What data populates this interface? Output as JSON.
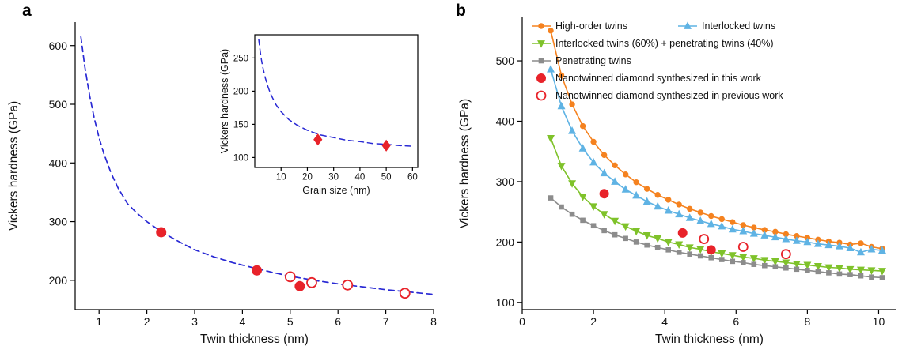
{
  "figure": {
    "background": "#ffffff"
  },
  "chart_data": [
    {
      "id": "panel-a",
      "panel_label": "a",
      "type": "line",
      "xlabel": "Twin thickness (nm)",
      "ylabel": "Vickers hardness (GPa)",
      "xlim": [
        0.5,
        8
      ],
      "ylim": [
        150,
        640
      ],
      "xticks": [
        1,
        2,
        3,
        4,
        5,
        6,
        7,
        8
      ],
      "yticks": [
        200,
        300,
        400,
        500,
        600
      ],
      "grid": false,
      "series": [
        {
          "name": "hardness-twin-thickness fit curve",
          "color": "#2929d4",
          "line": true,
          "dash": true,
          "width": 1.7,
          "marker": "none",
          "x": [
            0.62,
            0.7,
            0.8,
            0.9,
            1.0,
            1.1,
            1.25,
            1.4,
            1.6,
            1.8,
            2.0,
            2.3,
            2.6,
            3.0,
            3.4,
            3.8,
            4.2,
            4.6,
            5.0,
            5.5,
            6.0,
            6.5,
            7.0,
            7.5,
            8.0
          ],
          "y": [
            615,
            565,
            516,
            476,
            443,
            416,
            383,
            357,
            330,
            314,
            300,
            283,
            269,
            252,
            240,
            230,
            222,
            214,
            207,
            200,
            194,
            189,
            184,
            180,
            176
          ]
        },
        {
          "name": "Nanotwinned diamond synthesized in this work",
          "color": "#e8232a",
          "line": false,
          "marker": "circle",
          "filled": true,
          "msize": 6,
          "x": [
            2.3,
            4.3,
            5.2
          ],
          "y": [
            282,
            217,
            190
          ]
        },
        {
          "name": "Nanotwinned diamond synthesized in previous work",
          "color": "#e8232a",
          "line": false,
          "marker": "circle",
          "filled": false,
          "msize": 6,
          "x": [
            5.0,
            5.45,
            6.2,
            7.4
          ],
          "y": [
            206,
            196,
            192,
            178
          ]
        }
      ],
      "inset": {
        "id": "panel-a-inset",
        "xlabel": "Grain size (nm)",
        "ylabel": "Vickers hardness (GPa)",
        "xlim": [
          0,
          62
        ],
        "ylim": [
          85,
          285
        ],
        "xticks": [
          10,
          20,
          30,
          40,
          50,
          60
        ],
        "yticks": [
          100,
          150,
          200,
          250
        ],
        "grid": false,
        "series": [
          {
            "name": "hardness-grain size fit curve",
            "color": "#2929d4",
            "line": true,
            "dash": true,
            "width": 1.5,
            "marker": "none",
            "x": [
              1.5,
              2,
              2.5,
              3,
              4,
              5,
              6,
              8,
              10,
              13,
              16,
              20,
              25,
              30,
              35,
              40,
              45,
              50,
              55,
              60
            ],
            "y": [
              278,
              262,
              248,
              237,
              220,
              207,
              196,
              180,
              169,
              157,
              149,
              141,
              134,
              130,
              126,
              124,
              121,
              120,
              118,
              117
            ]
          },
          {
            "name": "nanograined diamond data points",
            "color": "#e8232a",
            "line": false,
            "marker": "diamond",
            "filled": true,
            "msize": 5,
            "x": [
              24,
              50
            ],
            "y": [
              127,
              118
            ]
          }
        ]
      }
    },
    {
      "id": "panel-b",
      "panel_label": "b",
      "type": "line",
      "xlabel": "Twin thickness (nm)",
      "ylabel": "Vickers hardness (GPa)",
      "xlim": [
        0,
        10.5
      ],
      "ylim": [
        88,
        572
      ],
      "xticks": [
        0,
        2,
        4,
        6,
        8,
        10
      ],
      "yticks": [
        100,
        200,
        300,
        400,
        500
      ],
      "grid": false,
      "legend_position": "top-left",
      "legend": [
        {
          "label": "High-order twins",
          "color": "#f5821f",
          "marker": "circle",
          "msize": 3.2,
          "line": true,
          "filled": true,
          "row": 0,
          "col": 0
        },
        {
          "label": "Interlocked twins",
          "color": "#5fb3e4",
          "marker": "triangle-up",
          "msize": 3.6,
          "line": true,
          "filled": true,
          "row": 0,
          "col": 1
        },
        {
          "label": "Interlocked twins (60%) + penetrating twins (40%)",
          "color": "#7fc22a",
          "marker": "triangle-down",
          "msize": 3.6,
          "line": true,
          "filled": true,
          "row": 1,
          "col": 0
        },
        {
          "label": "Penetrating twins",
          "color": "#8c8c8c",
          "marker": "square",
          "msize": 2.8,
          "line": true,
          "filled": true,
          "row": 2,
          "col": 0
        },
        {
          "label": "Nanotwinned diamond synthesized in this work",
          "color": "#e8232a",
          "marker": "circle",
          "msize": 5.5,
          "line": false,
          "filled": true,
          "row": 3,
          "col": 0
        },
        {
          "label": "Nanotwinned diamond synthesized in previous work",
          "color": "#e8232a",
          "marker": "circle",
          "msize": 5.5,
          "line": false,
          "filled": false,
          "row": 4,
          "col": 0
        }
      ],
      "series": [
        {
          "name": "High-order twins",
          "color": "#f5821f",
          "line": true,
          "marker": "circle",
          "filled": true,
          "msize": 3.2,
          "x": [
            0.8,
            1.1,
            1.4,
            1.7,
            2.0,
            2.3,
            2.6,
            2.9,
            3.2,
            3.5,
            3.8,
            4.1,
            4.4,
            4.7,
            5.0,
            5.3,
            5.6,
            5.9,
            6.2,
            6.5,
            6.8,
            7.1,
            7.4,
            7.7,
            8.0,
            8.3,
            8.6,
            8.9,
            9.2,
            9.5,
            9.8,
            10.1
          ],
          "y": [
            550,
            476,
            428,
            392,
            366,
            344,
            327,
            312,
            299,
            288,
            278,
            270,
            262,
            255,
            249,
            243,
            238,
            233,
            228,
            224,
            220,
            217,
            213,
            210,
            207,
            204,
            201,
            199,
            196,
            198,
            192,
            189
          ]
        },
        {
          "name": "Interlocked twins",
          "color": "#5fb3e4",
          "line": true,
          "marker": "triangle-up",
          "filled": true,
          "msize": 3.6,
          "x": [
            0.8,
            1.1,
            1.4,
            1.7,
            2.0,
            2.3,
            2.6,
            2.9,
            3.2,
            3.5,
            3.8,
            4.1,
            4.4,
            4.7,
            5.0,
            5.3,
            5.6,
            5.9,
            6.2,
            6.5,
            6.8,
            7.1,
            7.4,
            7.7,
            8.0,
            8.3,
            8.6,
            8.9,
            9.2,
            9.5,
            9.8,
            10.1
          ],
          "y": [
            486,
            425,
            384,
            355,
            332,
            314,
            300,
            287,
            277,
            267,
            259,
            252,
            246,
            240,
            235,
            230,
            226,
            221,
            218,
            214,
            211,
            208,
            205,
            202,
            200,
            197,
            195,
            193,
            190,
            183,
            188,
            186
          ]
        },
        {
          "name": "Interlocked twins (60%) + penetrating twins (40%)",
          "color": "#7fc22a",
          "line": true,
          "marker": "triangle-down",
          "filled": true,
          "msize": 3.6,
          "x": [
            0.8,
            1.1,
            1.4,
            1.7,
            2.0,
            2.3,
            2.6,
            2.9,
            3.2,
            3.5,
            3.8,
            4.1,
            4.4,
            4.7,
            5.0,
            5.3,
            5.6,
            5.9,
            6.2,
            6.5,
            6.8,
            7.1,
            7.4,
            7.7,
            8.0,
            8.3,
            8.6,
            8.9,
            9.2,
            9.5,
            9.8,
            10.1
          ],
          "y": [
            372,
            326,
            297,
            275,
            259,
            246,
            235,
            226,
            218,
            211,
            206,
            200,
            196,
            191,
            188,
            184,
            181,
            178,
            175,
            173,
            170,
            168,
            166,
            164,
            162,
            160,
            158,
            157,
            155,
            154,
            153,
            152
          ]
        },
        {
          "name": "Penetrating twins",
          "color": "#8c8c8c",
          "line": true,
          "marker": "square",
          "filled": true,
          "msize": 2.8,
          "x": [
            0.8,
            1.1,
            1.4,
            1.7,
            2.0,
            2.3,
            2.6,
            2.9,
            3.2,
            3.5,
            3.8,
            4.1,
            4.4,
            4.7,
            5.0,
            5.3,
            5.6,
            5.9,
            6.2,
            6.5,
            6.8,
            7.1,
            7.4,
            7.7,
            8.0,
            8.3,
            8.6,
            8.9,
            9.2,
            9.5,
            9.8,
            10.1
          ],
          "y": [
            273,
            258,
            246,
            236,
            227,
            219,
            212,
            206,
            200,
            195,
            191,
            187,
            183,
            180,
            177,
            174,
            171,
            168,
            166,
            163,
            161,
            159,
            157,
            155,
            153,
            151,
            149,
            147,
            146,
            144,
            142,
            141
          ]
        },
        {
          "name": "Nanotwinned diamond synthesized in this work",
          "color": "#e8232a",
          "line": false,
          "marker": "circle",
          "filled": true,
          "msize": 5.5,
          "x": [
            2.3,
            4.5,
            5.3
          ],
          "y": [
            280,
            215,
            187
          ]
        },
        {
          "name": "Nanotwinned diamond synthesized in previous work",
          "color": "#e8232a",
          "line": false,
          "marker": "circle",
          "filled": false,
          "msize": 5.5,
          "x": [
            5.1,
            6.2,
            7.4
          ],
          "y": [
            205,
            192,
            180
          ]
        }
      ]
    }
  ]
}
